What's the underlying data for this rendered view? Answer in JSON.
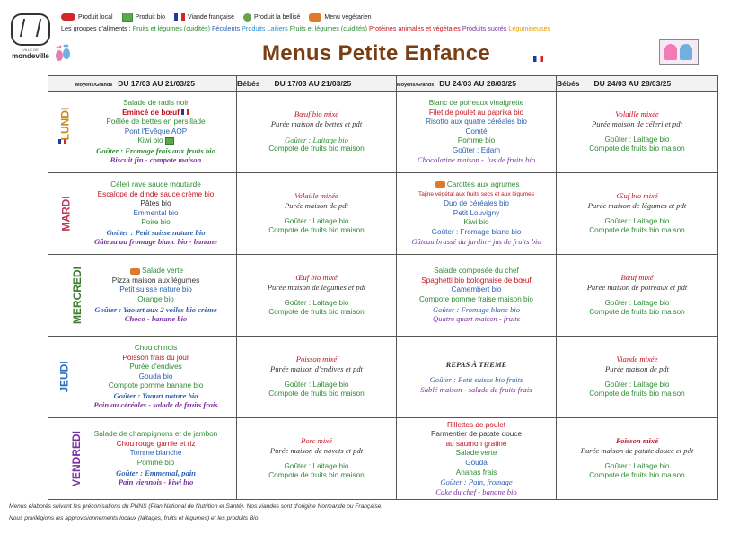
{
  "header": {
    "logo_small": "VILLE DE",
    "logo_name": "mondeville",
    "title": "Menus Petite Enfance",
    "legend": [
      {
        "label": "Produit local",
        "icon": "local-product-icon",
        "color": "#d3262b"
      },
      {
        "label": "Produit bio",
        "icon": "organic-product-icon",
        "color": "#5aa84a"
      },
      {
        "label": "Viande française",
        "icon": "french-flag-icon",
        "color": "#1f3c9a"
      },
      {
        "label": "Produit la bellisé",
        "icon": "quality-label-icon",
        "color": "#6aa24a"
      },
      {
        "label": "Menu végétarien",
        "icon": "vegetarian-menu-icon",
        "color": "#e07a2a"
      }
    ],
    "groups_label": "Les groupes d'aliments :",
    "groups": [
      {
        "text": "Fruits et légumes (cuidités)",
        "color": "#2e8b34"
      },
      {
        "text": "Féculents",
        "color": "#2a5fb0"
      },
      {
        "text": "Produits Laitiers",
        "color": "#2a8fd0"
      },
      {
        "text": "Fruits et légumes (cuidités)",
        "color": "#2e8b34"
      },
      {
        "text": "Protéines animales et végétales",
        "color": "#c1121f"
      },
      {
        "text": "Produits sucrés",
        "color": "#7a2fa0"
      },
      {
        "text": "Légumineuses",
        "color": "#e09b00"
      }
    ]
  },
  "columns": {
    "c1_age": "Moyens/Grands",
    "c1_dates": "DU 17/03 AU 21/03/25",
    "c2_label": "Bébés",
    "c2_dates": "DU 17/03 AU 21/03/25",
    "c3_age": "Moyens/Grands",
    "c3_dates": "DU 24/03 AU 28/03/25",
    "c4_label": "Bébés",
    "c4_dates": "DU 24/03 AU 28/03/25"
  },
  "days": [
    "LUNDI",
    "MARDI",
    "MERCREDI",
    "JEUDI",
    "VENDREDI"
  ],
  "menus": {
    "lundi": {
      "w1_grands": [
        "Salade de radis noir",
        "Emincé de bœuf",
        "Poêlée de bettes en persillade",
        "Pont l'Evêque AOP",
        "Kiwi bio",
        "Goûter : Fromage frais aux fruits bio",
        "Biscuit fin - compote maison"
      ],
      "w1_bebes": [
        "Bœuf bio mixé",
        "Purée maison de bettes et pdt",
        "Goûter : Laitage bio",
        "Compote de fruits bio maison"
      ],
      "w2_grands": [
        "Blanc de poireaux vinaigrette",
        "Filet de poulet au paprika bio",
        "Risotto aux quatre céréales bio",
        "Comté",
        "Pomme bio",
        "Goûter : Edam",
        "Chocolatine maison - Jus de fruits bio"
      ],
      "w2_bebes": [
        "Volaille mixée",
        "Purée maison de céleri et pdt",
        "Goûter : Laitage bio",
        "Compote de fruits bio maison"
      ]
    },
    "mardi": {
      "w1_grands": [
        "Céleri rave sauce moutarde",
        "Escalope de dinde sauce crème bio",
        "Pâtes bio",
        "Emmental bio",
        "Poire bio",
        "Goûter : Petit suisse nature bio",
        "Gâteau au fromage blanc bio - banane"
      ],
      "w1_bebes": [
        "Volaille mixée",
        "Purée maison de pdt",
        "Goûter : Laitage bio",
        "Compote de fruits bio maison"
      ],
      "w2_grands": [
        "Carottes aux agrumes",
        "Tajine végétal aux fruits secs et aux légumes",
        "Duo de céréales bio",
        "Petit Louvigny",
        "Kiwi bio",
        "Goûter : Fromage blanc bio",
        "Gâteau brassé du jardin - jus de fruits bio"
      ],
      "w2_bebes": [
        "Œuf bio mixé",
        "Purée maison de légumes et pdt",
        "Goûter : Laitage bio",
        "Compote de fruits bio maison"
      ]
    },
    "mercredi": {
      "w1_grands": [
        "Salade verte",
        "Pizza maison aux légumes",
        "Petit suisse nature bio",
        "Orange bio",
        "Goûter : Yaourt aux 2 voiles bio crème",
        "Choco - banane bio"
      ],
      "w1_bebes": [
        "Œuf bio mixé",
        "Purée maison de légumes et pdt",
        "Goûter : Laitage bio",
        "Compote de fruits bio maison"
      ],
      "w2_grands": [
        "Salade composée du chef",
        "Spaghetti bio bolognaise de bœuf",
        "Camembert bio",
        "Compote pomme fraise maison bio",
        "Goûter : Fromage blanc bio",
        "Quatre quart maison - fruits"
      ],
      "w2_bebes": [
        "Bœuf mixé",
        "Purée maison de poireaux et pdt",
        "Goûter : Laitage bio",
        "Compote de fruits bio maison"
      ]
    },
    "jeudi": {
      "w1_grands": [
        "Chou chinois",
        "Poisson frais du jour",
        "Purée d'endives",
        "Gouda bio",
        "Compote pomme banane bio",
        "Goûter : Yaourt nature bio",
        "Pain au céréales - salade de fruits frais"
      ],
      "w1_bebes": [
        "Poisson mixé",
        "Purée maison d'endives et pdt",
        "Goûter : Laitage bio",
        "Compote de fruits bio maison"
      ],
      "w2_grands": [
        "REPAS À THEME",
        "Goûter : Petit suisse bio fruits",
        "Sablé maison - salade de fruits frais"
      ],
      "w2_bebes": [
        "Viande mixée",
        "Purée maison de pdt",
        "Goûter : Laitage bio",
        "Compote de fruits bio maison"
      ]
    },
    "vendredi": {
      "w1_grands": [
        "Salade de champignons et de jambon",
        "Chou rouge garnie et riz",
        "Tomme blanche",
        "Pomme bio",
        "Goûter : Emmental, pain",
        "Pain viennois - kiwi bio"
      ],
      "w1_bebes": [
        "Porc mixé",
        "Purée maison de navets et pdt",
        "Goûter : Laitage bio",
        "Compote de fruits bio maison"
      ],
      "w2_grands": [
        "Rillettes de poulet",
        "Parmentier de patate douce",
        "au saumon gratiné",
        "Salade verte",
        "Gouda",
        "Ananas frais",
        "Goûter : Pain, fromage",
        "Cake du chef - banane bio"
      ],
      "w2_bebes": [
        "Poisson mixé",
        "Purée maison de patate douce et pdt",
        "Goûter : Laitage bio",
        "Compote de fruits bio maison"
      ]
    }
  },
  "footer": {
    "line1": "Menus élaborés suivant les préconisations du PNNS (Plan National de Nutrition et Santé). Nos viandes sont d'origine Normande ou Française.",
    "line2": "Nous privilégions les approvisionnements locaux (laitages, fruits et légumes) et les produits Bio."
  }
}
